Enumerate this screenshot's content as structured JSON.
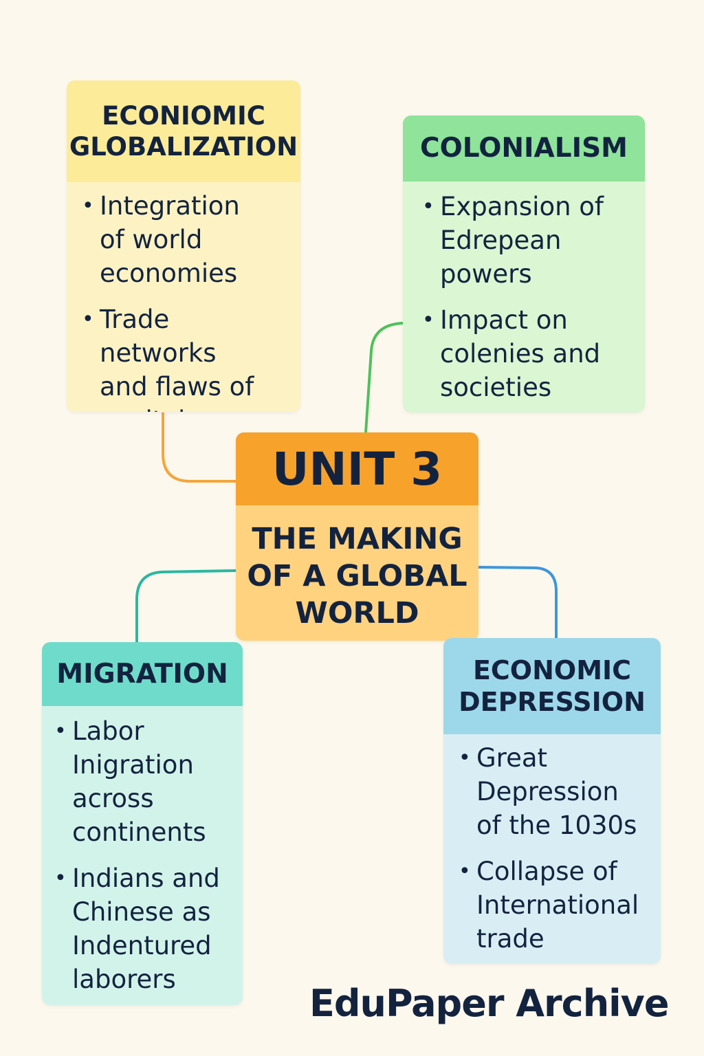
{
  "center": {
    "unit_label": "UNIT 3",
    "title_lines": [
      "THE MAKING",
      "OF A GLOBAL",
      "WORLD"
    ]
  },
  "economic_globalization": {
    "heading_lines": [
      "ECONIOMIC",
      "GLOBALIZATION"
    ],
    "bullets": [
      [
        "Integration",
        "of world",
        "economies"
      ],
      [
        "Trade networks",
        "and flaws of",
        "capital"
      ]
    ],
    "header_color": "#fceb98",
    "connector_color": "#f5a53a"
  },
  "colonialism": {
    "heading_lines": [
      "COLONIALISM"
    ],
    "bullets": [
      [
        "Expansion of",
        "Edrepean",
        "powers"
      ],
      [
        "Impact on",
        "colenies and",
        "societies"
      ]
    ],
    "header_color": "#8fe39a",
    "connector_color": "#4cc25a"
  },
  "migration": {
    "heading_lines": [
      "MIGRATION"
    ],
    "bullets": [
      [
        "Labor",
        "Inigration",
        "across",
        "continents"
      ],
      [
        "Indians and",
        "Chinese as",
        "Indentured",
        "laborers"
      ]
    ],
    "header_color": "#6fdccb",
    "connector_color": "#2bb7a0"
  },
  "economic_depression": {
    "heading_lines": [
      "ECONOMIC",
      "DEPRESSION"
    ],
    "bullets": [
      [
        "Great",
        "Depression",
        "of the 1030s"
      ],
      [
        "Collapse of",
        "International",
        "trade"
      ]
    ],
    "header_color": "#9dd8ea",
    "connector_color": "#3f96dc"
  },
  "brand": "EduPaper Archive"
}
